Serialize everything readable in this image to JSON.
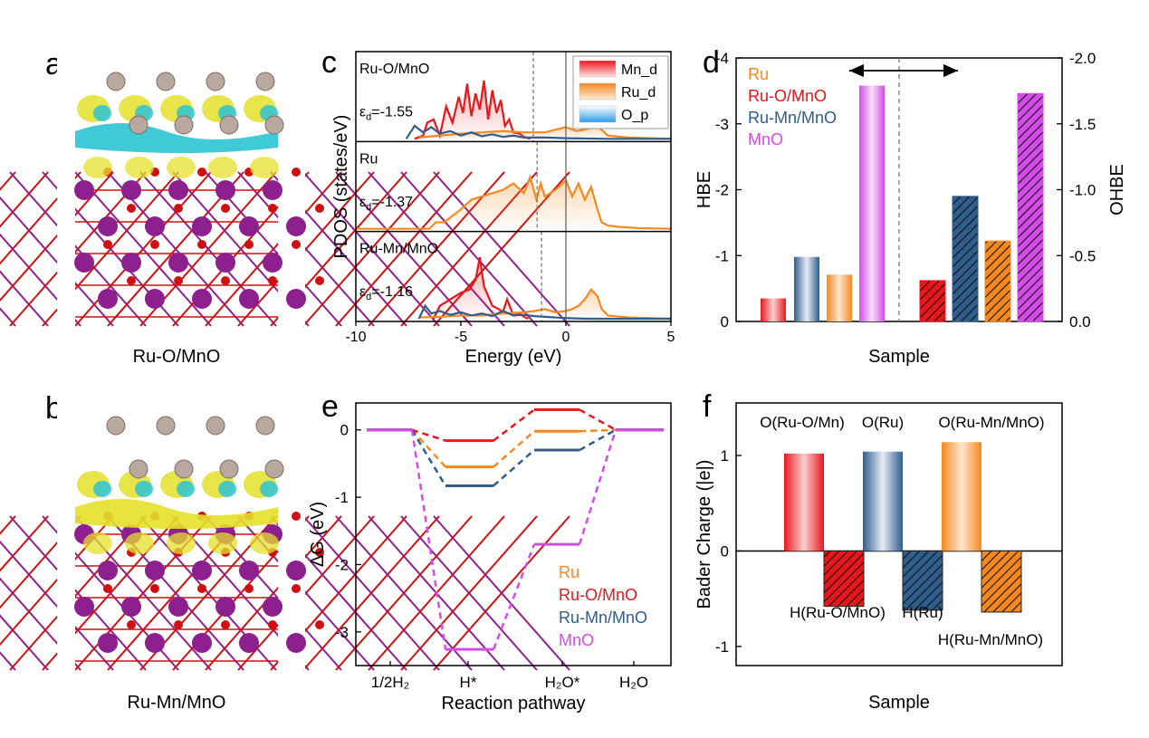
{
  "panel_letters": {
    "a": "a",
    "b": "b",
    "c": "c",
    "d": "d",
    "e": "e",
    "f": "f"
  },
  "structure_captions": {
    "a": "Ru-O/MnO",
    "b": "Ru-Mn/MnO"
  },
  "colors": {
    "Ru": "#F5891F",
    "RuO_MnO": "#E8171C",
    "RuMn_MnO": "#2F5D8C",
    "MnO": "#D44CE8",
    "cyan": "#2BC4D4",
    "yellow": "#E4E02A",
    "purple": "#8E1F8F",
    "oxygen": "#D01010",
    "ru_atom": "#B8A8A0"
  },
  "chart_data": [
    {
      "panel": "c",
      "type": "line",
      "xlabel": "Energy (eV)",
      "ylabel": "PDOS (states/eV)",
      "xlim": [
        -10,
        5
      ],
      "xticks": [
        "-10",
        "-5",
        "0",
        "5"
      ],
      "legend": [
        "Mn_d",
        "Ru_d",
        "O_p"
      ],
      "subplots": [
        {
          "label": "Ru-O/MnO",
          "ed_label": "-1.55",
          "ed": -1.55,
          "series": [
            {
              "name": "Mn_d",
              "x": [
                -7.2,
                -6.8,
                -6.6,
                -6.3,
                -6.0,
                -5.7,
                -5.4,
                -5.1,
                -4.9,
                -4.7,
                -4.5,
                -4.3,
                -4.1,
                -3.9,
                -3.7,
                -3.5,
                -3.3,
                -3.1,
                -2.9,
                -2.7,
                -2.5,
                -2.2,
                -2.0,
                -1.7
              ],
              "y": [
                0,
                0.05,
                0.25,
                0.3,
                0.05,
                0.5,
                0.25,
                0.65,
                0.4,
                0.85,
                0.35,
                0.7,
                0.45,
                0.9,
                0.3,
                0.75,
                0.4,
                0.6,
                0.2,
                0.3,
                0.1,
                0.08,
                0.03,
                0
              ]
            },
            {
              "name": "Ru_d",
              "x": [
                -7,
                -6,
                -5,
                -4,
                -3,
                -2,
                -1,
                0,
                0.5,
                1,
                1.5,
                2,
                3,
                5
              ],
              "y": [
                0.02,
                0.05,
                0.08,
                0.1,
                0.12,
                0.1,
                0.1,
                0.18,
                0.12,
                0.15,
                0.2,
                0.05,
                0.02,
                0
              ]
            },
            {
              "name": "O_p",
              "x": [
                -7.6,
                -7.2,
                -6.8,
                -6.4,
                -6,
                -5.5,
                -5,
                -4.5,
                -4,
                -3.5,
                -3,
                -2.5,
                -2,
                -1,
                0,
                2,
                5
              ],
              "y": [
                0,
                0.2,
                0.1,
                0.18,
                0.08,
                0.12,
                0.05,
                0.1,
                0.04,
                0.07,
                0.03,
                0.05,
                0.02,
                0.02,
                0.01,
                0,
                0
              ]
            }
          ]
        },
        {
          "label": "Ru",
          "ed_label": "-1.37",
          "ed": -1.37,
          "series": [
            {
              "name": "Ru_d",
              "x": [
                -10,
                -6.5,
                -6.2,
                -5.8,
                -5,
                -4.5,
                -4,
                -3.5,
                -3,
                -2.5,
                -2,
                -1.7,
                -1.4,
                -1.2,
                -1,
                -0.5,
                0,
                0.3,
                0.6,
                0.9,
                1.2,
                1.5,
                1.7,
                2,
                2.5,
                3.5,
                5
              ],
              "y": [
                0,
                0,
                0.1,
                0.1,
                0.3,
                0.45,
                0.5,
                0.55,
                0.6,
                0.7,
                0.55,
                0.8,
                0.45,
                0.7,
                0.5,
                0.6,
                0.75,
                0.5,
                0.7,
                0.45,
                0.65,
                0.3,
                0.1,
                0.05,
                0.03,
                0.01,
                0
              ]
            }
          ]
        },
        {
          "label": "Ru-Mn/MnO",
          "ed_label": "-1.16",
          "ed": -1.16,
          "series": [
            {
              "name": "Mn_d",
              "x": [
                -6.3,
                -6,
                -5.5,
                -5,
                -4.6,
                -4.3,
                -4.1,
                -3.9,
                -3.7,
                -3.5,
                -3.2,
                -3,
                -2.8,
                -2.5,
                -2.2,
                -2,
                -1.8
              ],
              "y": [
                0,
                0.2,
                0.3,
                0.4,
                0.45,
                0.6,
                0.95,
                0.5,
                0.35,
                0.2,
                0.15,
                0.1,
                0.3,
                0.05,
                0.08,
                0.03,
                0
              ]
            },
            {
              "name": "Ru_d",
              "x": [
                -7,
                -6,
                -5,
                -4,
                -3,
                -2,
                -1.5,
                -1,
                -0.5,
                0,
                0.3,
                0.6,
                0.9,
                1.2,
                1.5,
                1.7,
                2,
                3,
                5
              ],
              "y": [
                0.02,
                0.03,
                0.05,
                0.05,
                0.08,
                0.1,
                0.12,
                0.15,
                0.1,
                0.12,
                0.15,
                0.2,
                0.3,
                0.45,
                0.35,
                0.15,
                0.05,
                0.02,
                0
              ]
            },
            {
              "name": "O_p",
              "x": [
                -7,
                -6.7,
                -6.4,
                -6,
                -5.5,
                -5,
                -4.5,
                -4,
                -3.5,
                -3,
                -2.5,
                -2,
                -1.5,
                -1,
                -0.5,
                0,
                1,
                5
              ],
              "y": [
                0,
                0.2,
                0.08,
                0.12,
                0.06,
                0.1,
                0.05,
                0.08,
                0.04,
                0.12,
                0.05,
                0.06,
                0.04,
                0.03,
                0.02,
                0.01,
                0,
                0
              ]
            }
          ]
        }
      ]
    },
    {
      "panel": "d",
      "type": "bar",
      "xlabel": "Sample",
      "ylabel_left": "HBE",
      "ylabel_right": "OHBE",
      "ylim_left": [
        0,
        -4
      ],
      "ylim_right": [
        0,
        -2.0
      ],
      "yticks_left": [
        "0",
        "-1",
        "-2",
        "-3",
        "-4"
      ],
      "yticks_right": [
        "0.0",
        "-0.5",
        "-1.0",
        "-1.5",
        "-2.0"
      ],
      "legend": [
        "Ru",
        "Ru-O/MnO",
        "Ru-Mn/MnO",
        "MnO"
      ],
      "HBE": [
        {
          "name": "Ru-O/MnO",
          "value": -0.35
        },
        {
          "name": "Ru-Mn/MnO",
          "value": -0.98
        },
        {
          "name": "Ru",
          "value": -0.71
        },
        {
          "name": "MnO",
          "value": -3.58
        }
      ],
      "OHBE": [
        {
          "name": "Ru-O/MnO",
          "value": -0.31
        },
        {
          "name": "Ru-Mn/MnO",
          "value": -0.95
        },
        {
          "name": "Ru",
          "value": -0.61
        },
        {
          "name": "MnO",
          "value": -1.73
        }
      ]
    },
    {
      "panel": "e",
      "type": "line",
      "xlabel": "Reaction pathway",
      "ylabel": "ΔG (eV)",
      "ylim": [
        -3.5,
        0.4
      ],
      "yticks": [
        "0",
        "-1",
        "-2",
        "-3"
      ],
      "categories": [
        "1/2H₂",
        "H*",
        "H₂O*",
        "H₂O"
      ],
      "series": [
        {
          "name": "Ru",
          "values": [
            0,
            -0.55,
            -0.02,
            0
          ]
        },
        {
          "name": "Ru-O/MnO",
          "values": [
            0,
            -0.16,
            0.3,
            0
          ]
        },
        {
          "name": "Ru-Mn/MnO",
          "values": [
            0,
            -0.83,
            -0.3,
            0
          ]
        },
        {
          "name": "MnO",
          "values": [
            0,
            -3.26,
            -1.7,
            0
          ]
        }
      ]
    },
    {
      "panel": "f",
      "type": "bar",
      "xlabel": "Sample",
      "ylabel": "Bader Charge (|e|)",
      "ylim": [
        -1.2,
        1.55
      ],
      "yticks": [
        "1",
        "0",
        "-1"
      ],
      "bars": [
        {
          "label": "O(Ru-O/Mn)",
          "value": 1.02,
          "series": "Ru-O/MnO",
          "hatched": false
        },
        {
          "label": "H(Ru-O/MnO)",
          "value": -0.58,
          "series": "Ru-O/MnO",
          "hatched": true
        },
        {
          "label": "O(Ru)",
          "value": 1.04,
          "series": "Ru-Mn/MnO",
          "hatched": false
        },
        {
          "label": "H(Ru)",
          "value": -0.62,
          "series": "Ru-Mn/MnO",
          "hatched": true
        },
        {
          "label": "O(Ru-Mn/MnO)",
          "value": 1.14,
          "series": "Ru",
          "hatched": false
        },
        {
          "label": "H(Ru-Mn/MnO)",
          "value": -0.64,
          "series": "Ru",
          "hatched": true
        }
      ]
    }
  ]
}
